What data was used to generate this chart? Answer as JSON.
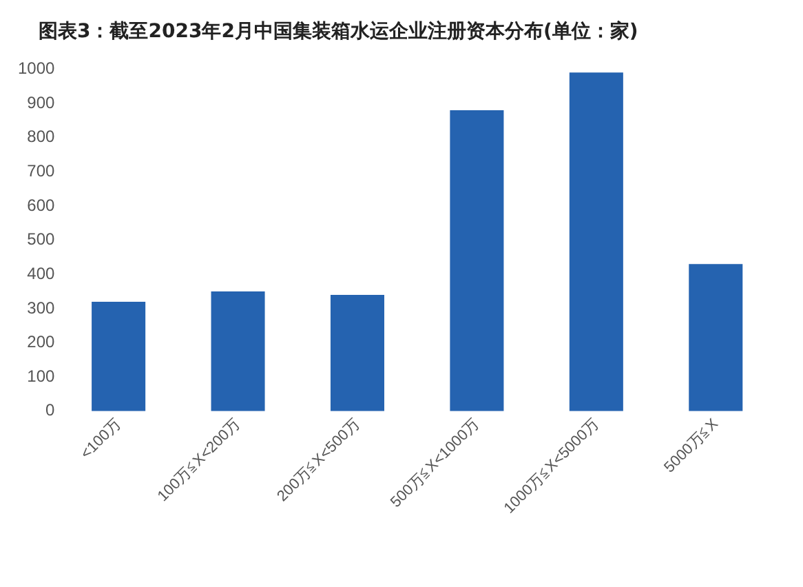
{
  "chart_data": {
    "type": "bar",
    "title": "图表3：截至2023年2月中国集装箱水运企业注册资本分布(单位：家)",
    "categories": [
      "<100万",
      "100万≦X<200万",
      "200万≦X<500万",
      "500万≦X<1000万",
      "1000万≦X<5000万",
      "5000万≦X"
    ],
    "values": [
      320,
      350,
      340,
      880,
      990,
      430
    ],
    "color": "#2563b0",
    "ylim": [
      0,
      1000
    ],
    "yticks": [
      0,
      100,
      200,
      300,
      400,
      500,
      600,
      700,
      800,
      900,
      1000
    ],
    "grid": false,
    "legend": false
  }
}
